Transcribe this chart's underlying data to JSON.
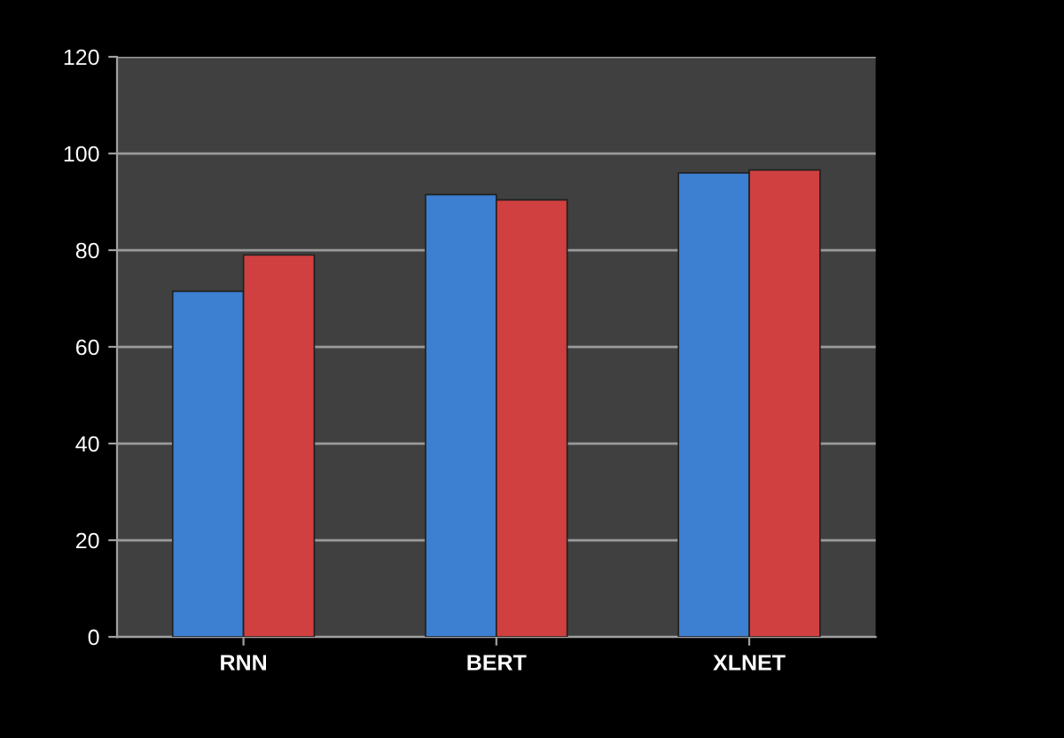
{
  "chart_data": {
    "type": "bar",
    "categories": [
      "RNN",
      "BERT",
      "XLNET"
    ],
    "series": [
      {
        "color": "#3d7fd0",
        "values": [
          71.5,
          91.5,
          96
        ]
      },
      {
        "color": "#d04040",
        "values": [
          79,
          90.4,
          96.6
        ]
      }
    ],
    "ylim": [
      0,
      120
    ],
    "yticks": [
      0,
      20,
      40,
      60,
      80,
      100,
      120
    ],
    "grid": "y"
  }
}
